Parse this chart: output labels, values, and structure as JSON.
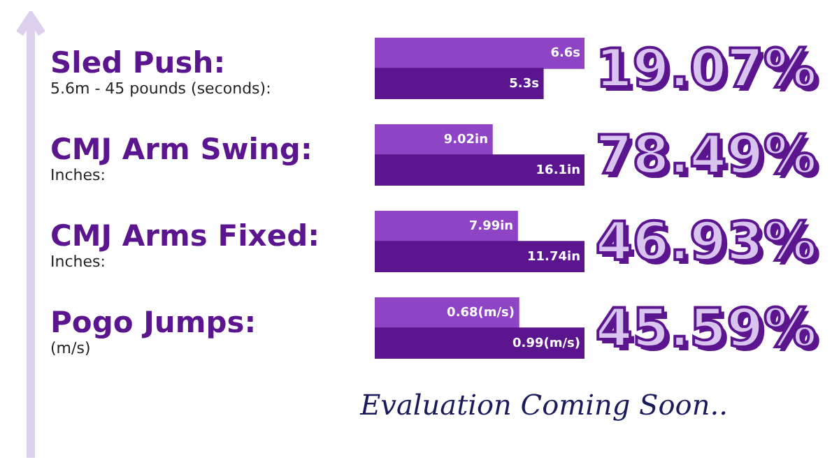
{
  "chart_data": [
    {
      "type": "bar",
      "orientation": "horizontal",
      "title": "Sled Push:",
      "categories": [
        null,
        null
      ],
      "values": [
        6.6,
        5.3
      ],
      "colors": [
        "#8e44c4",
        "#5b168f"
      ],
      "value_labels": [
        "6.6s",
        "5.3s"
      ],
      "annotations": [
        "5.6m - 45 pounds (seconds):",
        "19.07%"
      ]
    },
    {
      "type": "bar",
      "orientation": "horizontal",
      "title": "CMJ Arm Swing:",
      "categories": [
        null,
        null
      ],
      "values": [
        9.02,
        16.1
      ],
      "colors": [
        "#8e44c4",
        "#5b168f"
      ],
      "value_labels": [
        "9.02in",
        "16.1in"
      ],
      "annotations": [
        "Inches:",
        "78.49%"
      ]
    },
    {
      "type": "bar",
      "orientation": "horizontal",
      "title": "CMJ Arms Fixed:",
      "categories": [
        null,
        null
      ],
      "values": [
        7.99,
        11.74
      ],
      "colors": [
        "#8e44c4",
        "#5b168f"
      ],
      "value_labels": [
        "7.99in",
        "11.74in"
      ],
      "annotations": [
        "Inches:",
        "46.93%"
      ]
    },
    {
      "type": "bar",
      "orientation": "horizontal",
      "title": "Pogo Jumps:",
      "categories": [
        null,
        null
      ],
      "values": [
        0.68,
        0.99
      ],
      "colors": [
        "#8e44c4",
        "#5b168f"
      ],
      "value_labels": [
        "0.68(m/s)",
        "0.99(m/s)"
      ],
      "annotations": [
        "(m/s)",
        "45.59%"
      ]
    },
    {
      "type": "other",
      "title": "Evaluation Coming Soon.."
    }
  ]
}
